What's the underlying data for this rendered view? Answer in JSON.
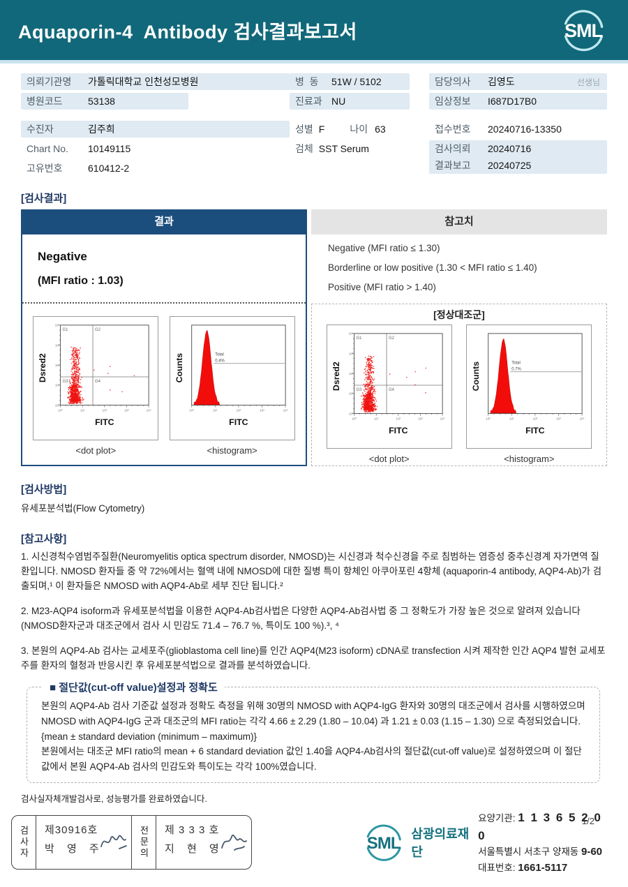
{
  "header": {
    "title": "Aquaporin-4  Antibody 검사결과보고서",
    "logo_text": "SML"
  },
  "info": {
    "left": {
      "org_label": "의뢰기관명",
      "org_value": "가톨릭대학교 인천성모병원",
      "hospital_code_label": "병원코드",
      "hospital_code_value": "53138",
      "patient_label": "수진자",
      "patient_value": "김주희",
      "chart_label": "Chart No.",
      "chart_value": "10149115",
      "uid_label": "고유번호",
      "uid_value": "610412-2"
    },
    "middle": {
      "ward_label": "병  동",
      "ward_value": "51W / 5102",
      "dept_label": "진료과",
      "dept_value": "NU",
      "sex_label": "성별",
      "sex_value": "F",
      "age_label": "나이",
      "age_value": "63",
      "specimen_label": "검체",
      "specimen_value": "SST Serum"
    },
    "right": {
      "doctor_label": "담당의사",
      "doctor_value": "김영도",
      "doctor_suffix": "선생님",
      "clinical_label": "임상정보",
      "clinical_value": "I687D17B0",
      "receipt_label": "접수번호",
      "receipt_value": "20240716-13350",
      "request_label": "검사의뢰",
      "request_value": "20240716",
      "report_label": "결과보고",
      "report_value": "20240725"
    }
  },
  "result_section": {
    "heading": "[검사결과]",
    "result_header": "결과",
    "reference_header": "참고치",
    "result_line1": "Negative",
    "result_line2": "(MFI ratio : 1.03)",
    "reference_lines": [
      "Negative (MFI ratio ≤ 1.30)",
      "Borderline or low positive (1.30 < MFI ratio ≤ 1.40)",
      "Positive (MFI ratio > 1.40)"
    ],
    "control_title": "[정상대조군]",
    "captions": {
      "dot": "<dot plot>",
      "hist": "<histogram>"
    }
  },
  "chart_data": [
    {
      "type": "scatter",
      "title": "patient dot plot",
      "xlabel": "FITC",
      "ylabel": "Dsred2",
      "quadrant_labels": [
        "G1",
        "G2",
        "G3",
        "G4"
      ],
      "axis_ticks": [
        "10⁰",
        "10¹",
        "10²",
        "10³",
        "10⁴"
      ],
      "description": "red cell cluster concentrated in lower-left quadrant G3, tail extending upward into G1",
      "seed": 7
    },
    {
      "type": "area",
      "title": "patient histogram",
      "xlabel": "FITC",
      "ylabel": "Counts",
      "axis_ticks": [
        "10⁰",
        "10¹",
        "10²",
        "10³",
        "10⁴"
      ],
      "annotation": {
        "label": "Total",
        "value": "0.4%"
      },
      "description": "single narrow red peak at low FITC intensity; gate line at right with Total 0.4%"
    },
    {
      "type": "scatter",
      "title": "normal control dot plot",
      "xlabel": "FITC",
      "ylabel": "Dsred2",
      "quadrant_labels": [
        "G1",
        "G2",
        "G3",
        "G4"
      ],
      "axis_ticks": [
        "10⁰",
        "10¹",
        "10²",
        "10³",
        "10⁴"
      ],
      "description": "red cell cluster concentrated in lower-left quadrant G3, tail extending upward into G1",
      "seed": 21
    },
    {
      "type": "area",
      "title": "normal control histogram",
      "xlabel": "FITC",
      "ylabel": "Counts",
      "axis_ticks": [
        "10⁰",
        "10¹",
        "10²",
        "10³",
        "10⁴"
      ],
      "annotation": {
        "label": "Total",
        "value": "0.7%"
      },
      "description": "single narrow red peak at low FITC intensity; gate line at right with Total 0.7%"
    }
  ],
  "method_section": {
    "heading": "[검사방법]",
    "text": "유세포분석법(Flow Cytometry)"
  },
  "notes_section": {
    "heading": "[참고사항]",
    "paragraphs": [
      "1. 시신경척수염범주질환(Neuromyelitis optica spectrum disorder, NMOSD)는 시신경과 척수신경을 주로 침범하는 염증성 중추신경계 자가면역 질환입니다. NMOSD 환자들 중 약 72%에서는 혈액 내에 NMOSD에 대한 질병 특이 항체인 아쿠아포린 4항체 (aquaporin-4 antibody, AQP4-Ab)가 검출되며,¹ 이 환자들은 NMOSD with AQP4-Ab로 세부 진단 됩니다.²",
      "2. M23-AQP4 isoform과 유세포분석법을 이용한 AQP4-Ab검사법은 다양한 AQP4-Ab검사법 중 그 정확도가 가장 높은 것으로 알려져 있습니다(NMOSD환자군과 대조군에서 검사 시 민감도 71.4 – 76.7 %, 특이도 100 %).³, ⁴",
      "3. 본원의 AQP4-Ab 검사는 교세포주(glioblastoma cell line)를 인간 AQP4(M23 isoform) cDNA로 transfection 시켜 제작한 인간 AQP4 발현 교세포주를 환자의 혈청과 반응시킨 후 유세포분석법으로 결과를 분석하였습니다."
    ]
  },
  "cutoff_section": {
    "title": "■ 절단값(cut-off value)설정과 정확도",
    "lines": [
      "본원의 AQP4-Ab 검사 기준값 설정과 정확도 측정을 위해 30명의 NMOSD with AQP4-IgG 환자와 30명의 대조군에서 검사를 시행하였으며 NMOSD with AQP4-IgG 군과 대조군의 MFI ratio는 각각 4.66 ± 2.29 (1.80 – 10.04) 과 1.21 ± 0.03 (1.15 – 1.30) 으로  측정되었습니다. {mean ± standard deviation (minimum – maximum)}",
      "본원에서는 대조군 MFI ratio의 mean + 6 standard deviation 값인 1.40을 AQP4-Ab검사의 절단값(cut-off value)로 설정하였으며 이 절단값에서 본원 AQP4-Ab 검사의 민감도와 특이도는 각각 100%였습니다."
    ]
  },
  "footnote": "검사실자체개발검사로, 성능평가를 완료하였습니다.",
  "page_number": "1/2",
  "footer": {
    "stamp": {
      "examiner_label": "검사자",
      "examiner_cert": "제30916호",
      "examiner_name": "박 영 주",
      "specialist_label": "전문의",
      "specialist_cert": "제 3 3 3 호",
      "specialist_name": "지 현 영"
    },
    "brand": {
      "logo": "SML",
      "name": "삼광의료재단"
    },
    "contact": {
      "l1_label": "요양기관:",
      "l1_value": "1 1 3 6 5 2 0 0",
      "l2_label": "서울특별시 서초구 양재동",
      "l2_value": "9-60",
      "l3_label": "대표번호:",
      "l3_value": "1661-5117"
    }
  },
  "colors": {
    "band_teal": "#11687a",
    "separator_blue": "#c9e4ef",
    "label_highlight": "#dfeaf2",
    "result_header_navy": "#1c4e7d",
    "section_navy": "#1f3864",
    "plot_red": "#ee1310"
  }
}
